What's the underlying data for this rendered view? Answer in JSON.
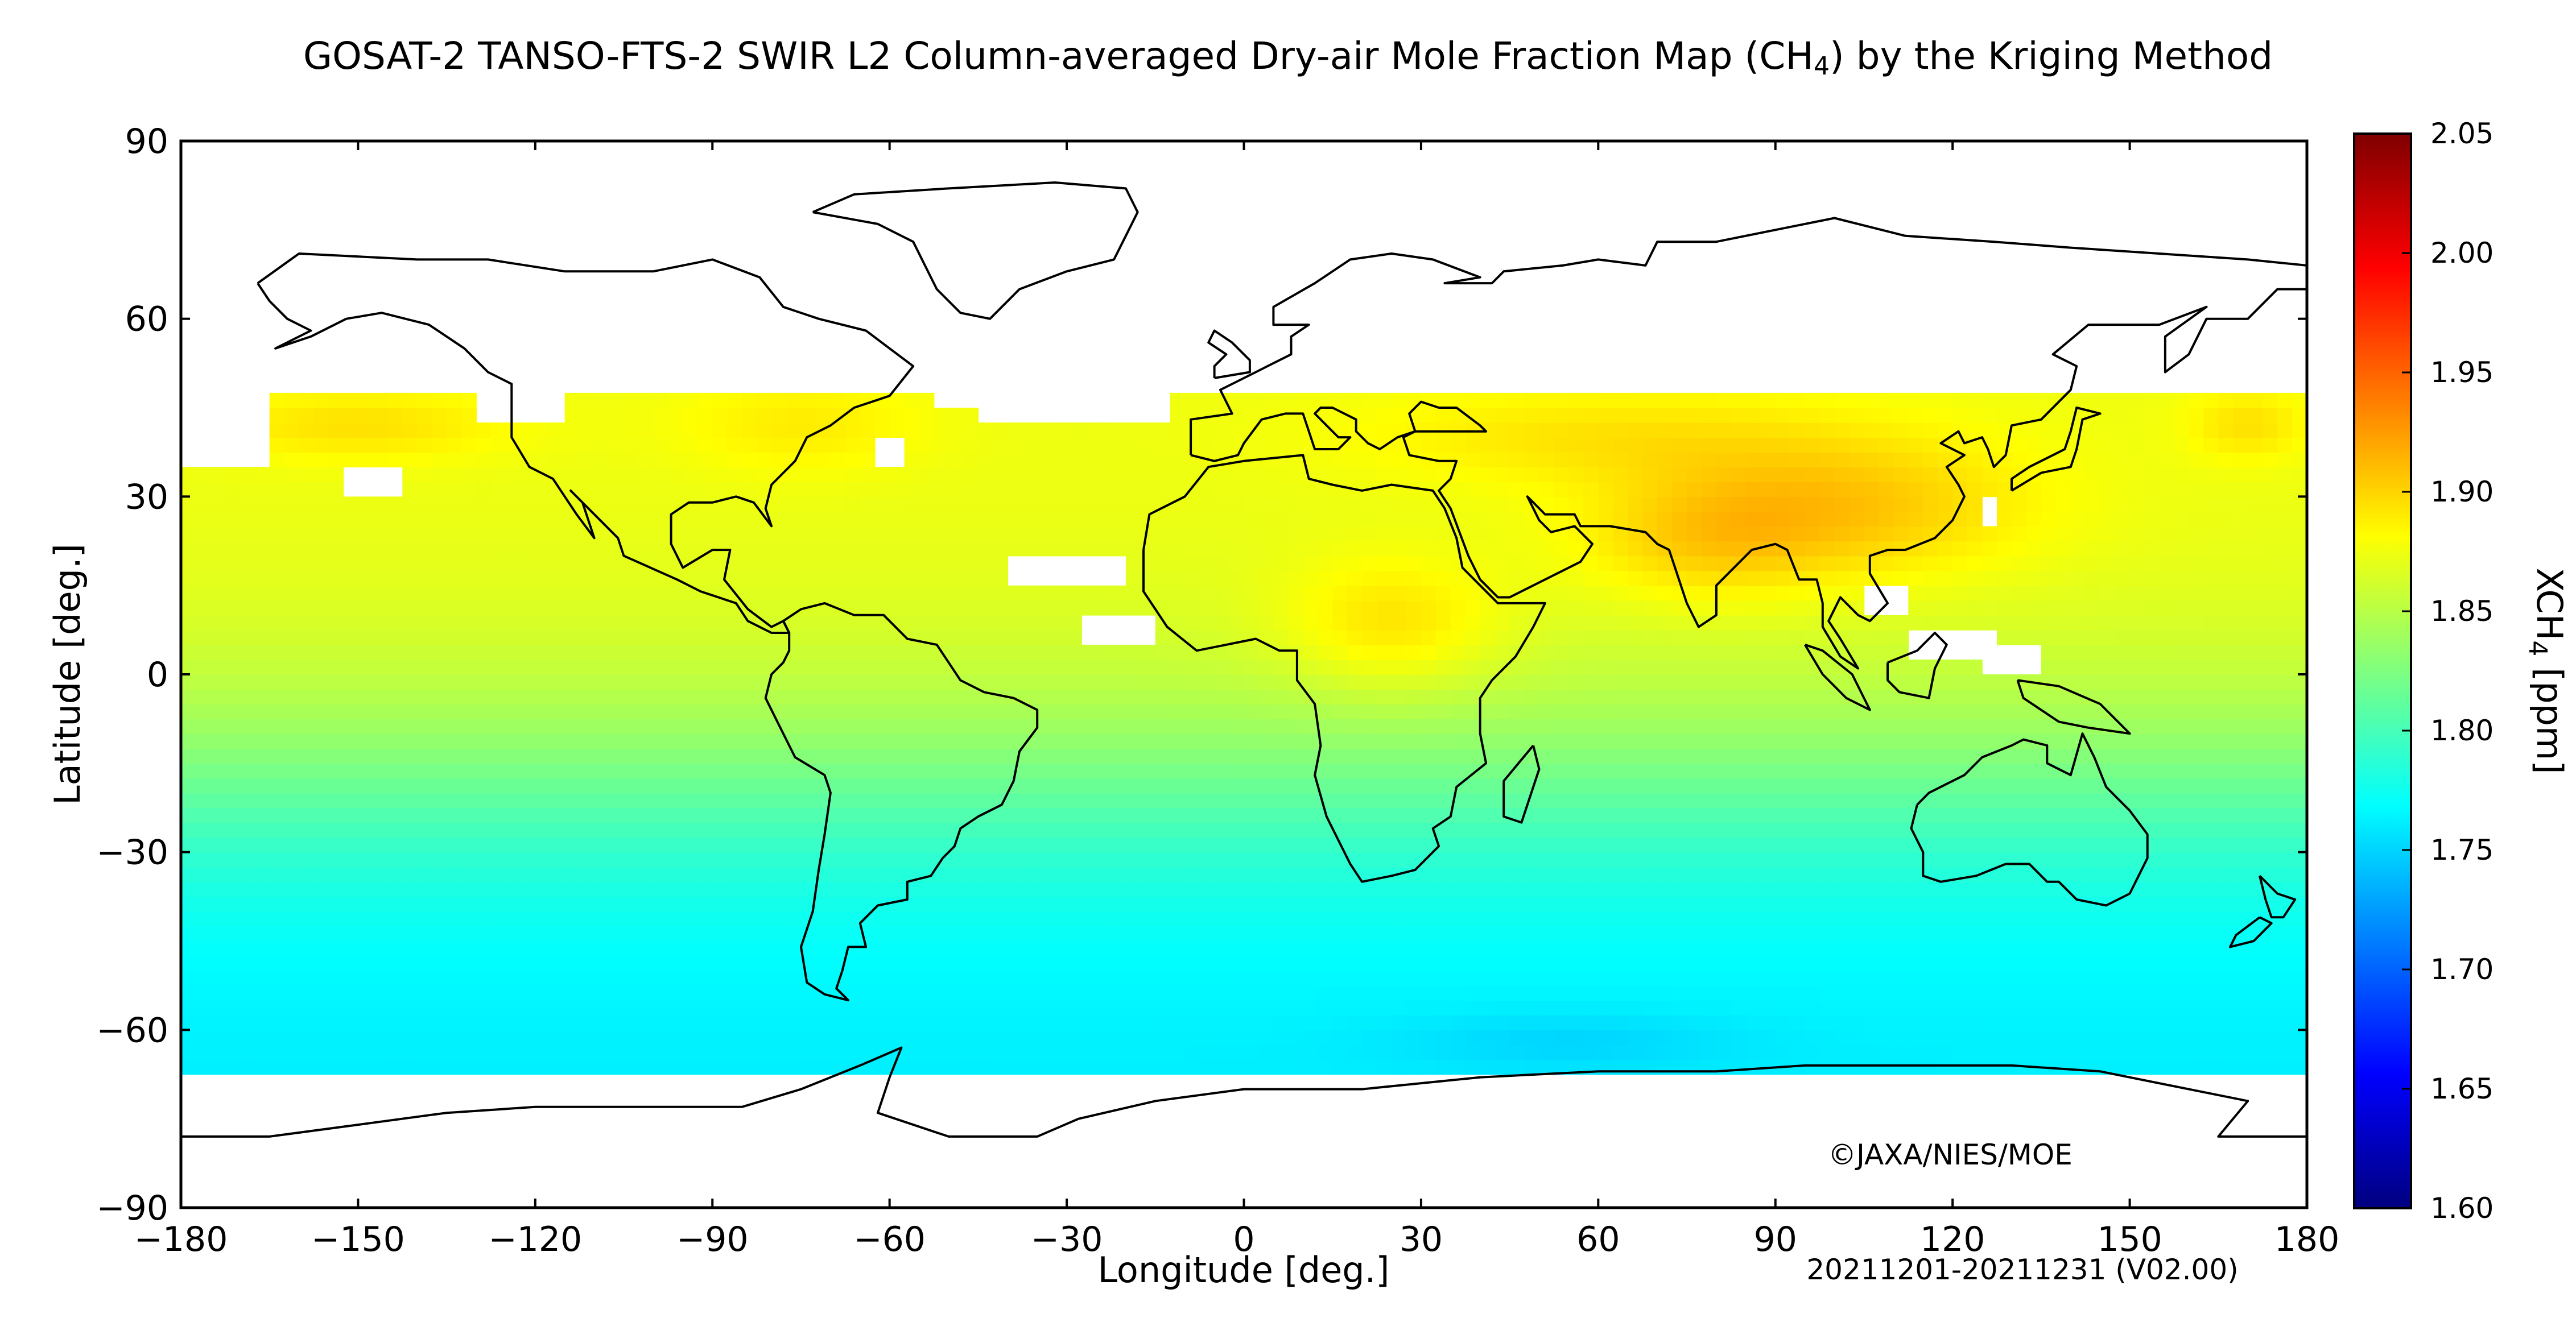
{
  "title": {
    "main": "GOSAT-2 TANSO-FTS-2 SWIR L2 Column-averaged Dry-air Mole Fraction Map (CH",
    "sub": "4",
    "end": ") by the Kriging Method"
  },
  "axes": {
    "xlabel": "Longitude [deg.]",
    "ylabel": "Latitude [deg.]",
    "xlim": [
      -180,
      180
    ],
    "ylim": [
      -90,
      90
    ],
    "xticks": [
      -180,
      -150,
      -120,
      -90,
      -60,
      -30,
      0,
      30,
      60,
      90,
      120,
      150,
      180
    ],
    "yticks": [
      90,
      60,
      30,
      0,
      -30,
      -60,
      -90
    ]
  },
  "colorbar": {
    "label_main": "XCH",
    "label_sub": "4",
    "label_end": " [ppm]",
    "range": [
      1.6,
      2.05
    ],
    "ticks": [
      "2.05",
      "2.00",
      "1.95",
      "1.90",
      "1.85",
      "1.80",
      "1.75",
      "1.70",
      "1.65",
      "1.60"
    ],
    "stops": [
      "#00007f",
      "#0000ff",
      "#007fff",
      "#00ffff",
      "#7fff7f",
      "#ffff00",
      "#ff7f00",
      "#ff0000",
      "#7f0000"
    ]
  },
  "copyright": "©JAXA/NIES/MOE",
  "period": "20211201-20211231 (V02.00)"
}
